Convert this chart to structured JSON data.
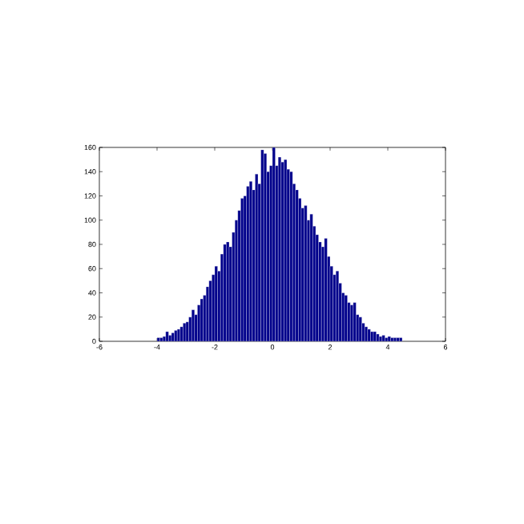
{
  "chart_data": {
    "type": "histogram",
    "color": "#00008b",
    "bins": [
      -4.0,
      -3.9,
      -3.8,
      -3.7,
      -3.6,
      -3.5,
      -3.4,
      -3.3,
      -3.2,
      -3.1,
      -3.0,
      -2.9,
      -2.8,
      -2.7,
      -2.6,
      -2.5,
      -2.4,
      -2.3,
      -2.2,
      -2.1,
      -2.0,
      -1.9,
      -1.8,
      -1.7,
      -1.6,
      -1.5,
      -1.4,
      -1.3,
      -1.2,
      -1.1,
      -1.0,
      -0.9,
      -0.8,
      -0.7,
      -0.6,
      -0.5,
      -0.4,
      -0.3,
      -0.2,
      -0.1,
      0.0,
      0.1,
      0.2,
      0.3,
      0.4,
      0.5,
      0.6,
      0.7,
      0.8,
      0.9,
      1.0,
      1.1,
      1.2,
      1.3,
      1.4,
      1.5,
      1.6,
      1.7,
      1.8,
      1.9,
      2.0,
      2.1,
      2.2,
      2.3,
      2.4,
      2.5,
      2.6,
      2.7,
      2.8,
      2.9,
      3.0,
      3.1,
      3.2,
      3.3,
      3.4,
      3.5,
      3.6,
      3.7,
      3.8,
      3.9,
      4.0,
      4.1,
      4.2,
      4.3,
      4.4,
      4.5
    ],
    "values": [
      3,
      3,
      4,
      8,
      5,
      7,
      9,
      10,
      12,
      15,
      16,
      20,
      26,
      22,
      30,
      35,
      38,
      45,
      50,
      55,
      62,
      58,
      72,
      80,
      82,
      78,
      90,
      100,
      108,
      118,
      120,
      128,
      132,
      125,
      138,
      130,
      158,
      155,
      140,
      145,
      160,
      145,
      152,
      148,
      150,
      142,
      140,
      130,
      125,
      118,
      110,
      112,
      100,
      105,
      95,
      88,
      82,
      78,
      85,
      70,
      62,
      55,
      58,
      48,
      40,
      38,
      32,
      30,
      32,
      22,
      20,
      15,
      12,
      10,
      8,
      8,
      6,
      4,
      5,
      3,
      4,
      3,
      3,
      3,
      3
    ],
    "xlim": [
      -6,
      6
    ],
    "ylim": [
      0,
      160
    ],
    "xticks": [
      -6,
      -4,
      -2,
      0,
      2,
      4,
      6
    ],
    "yticks": [
      0,
      20,
      40,
      60,
      80,
      100,
      120,
      140,
      160
    ]
  }
}
